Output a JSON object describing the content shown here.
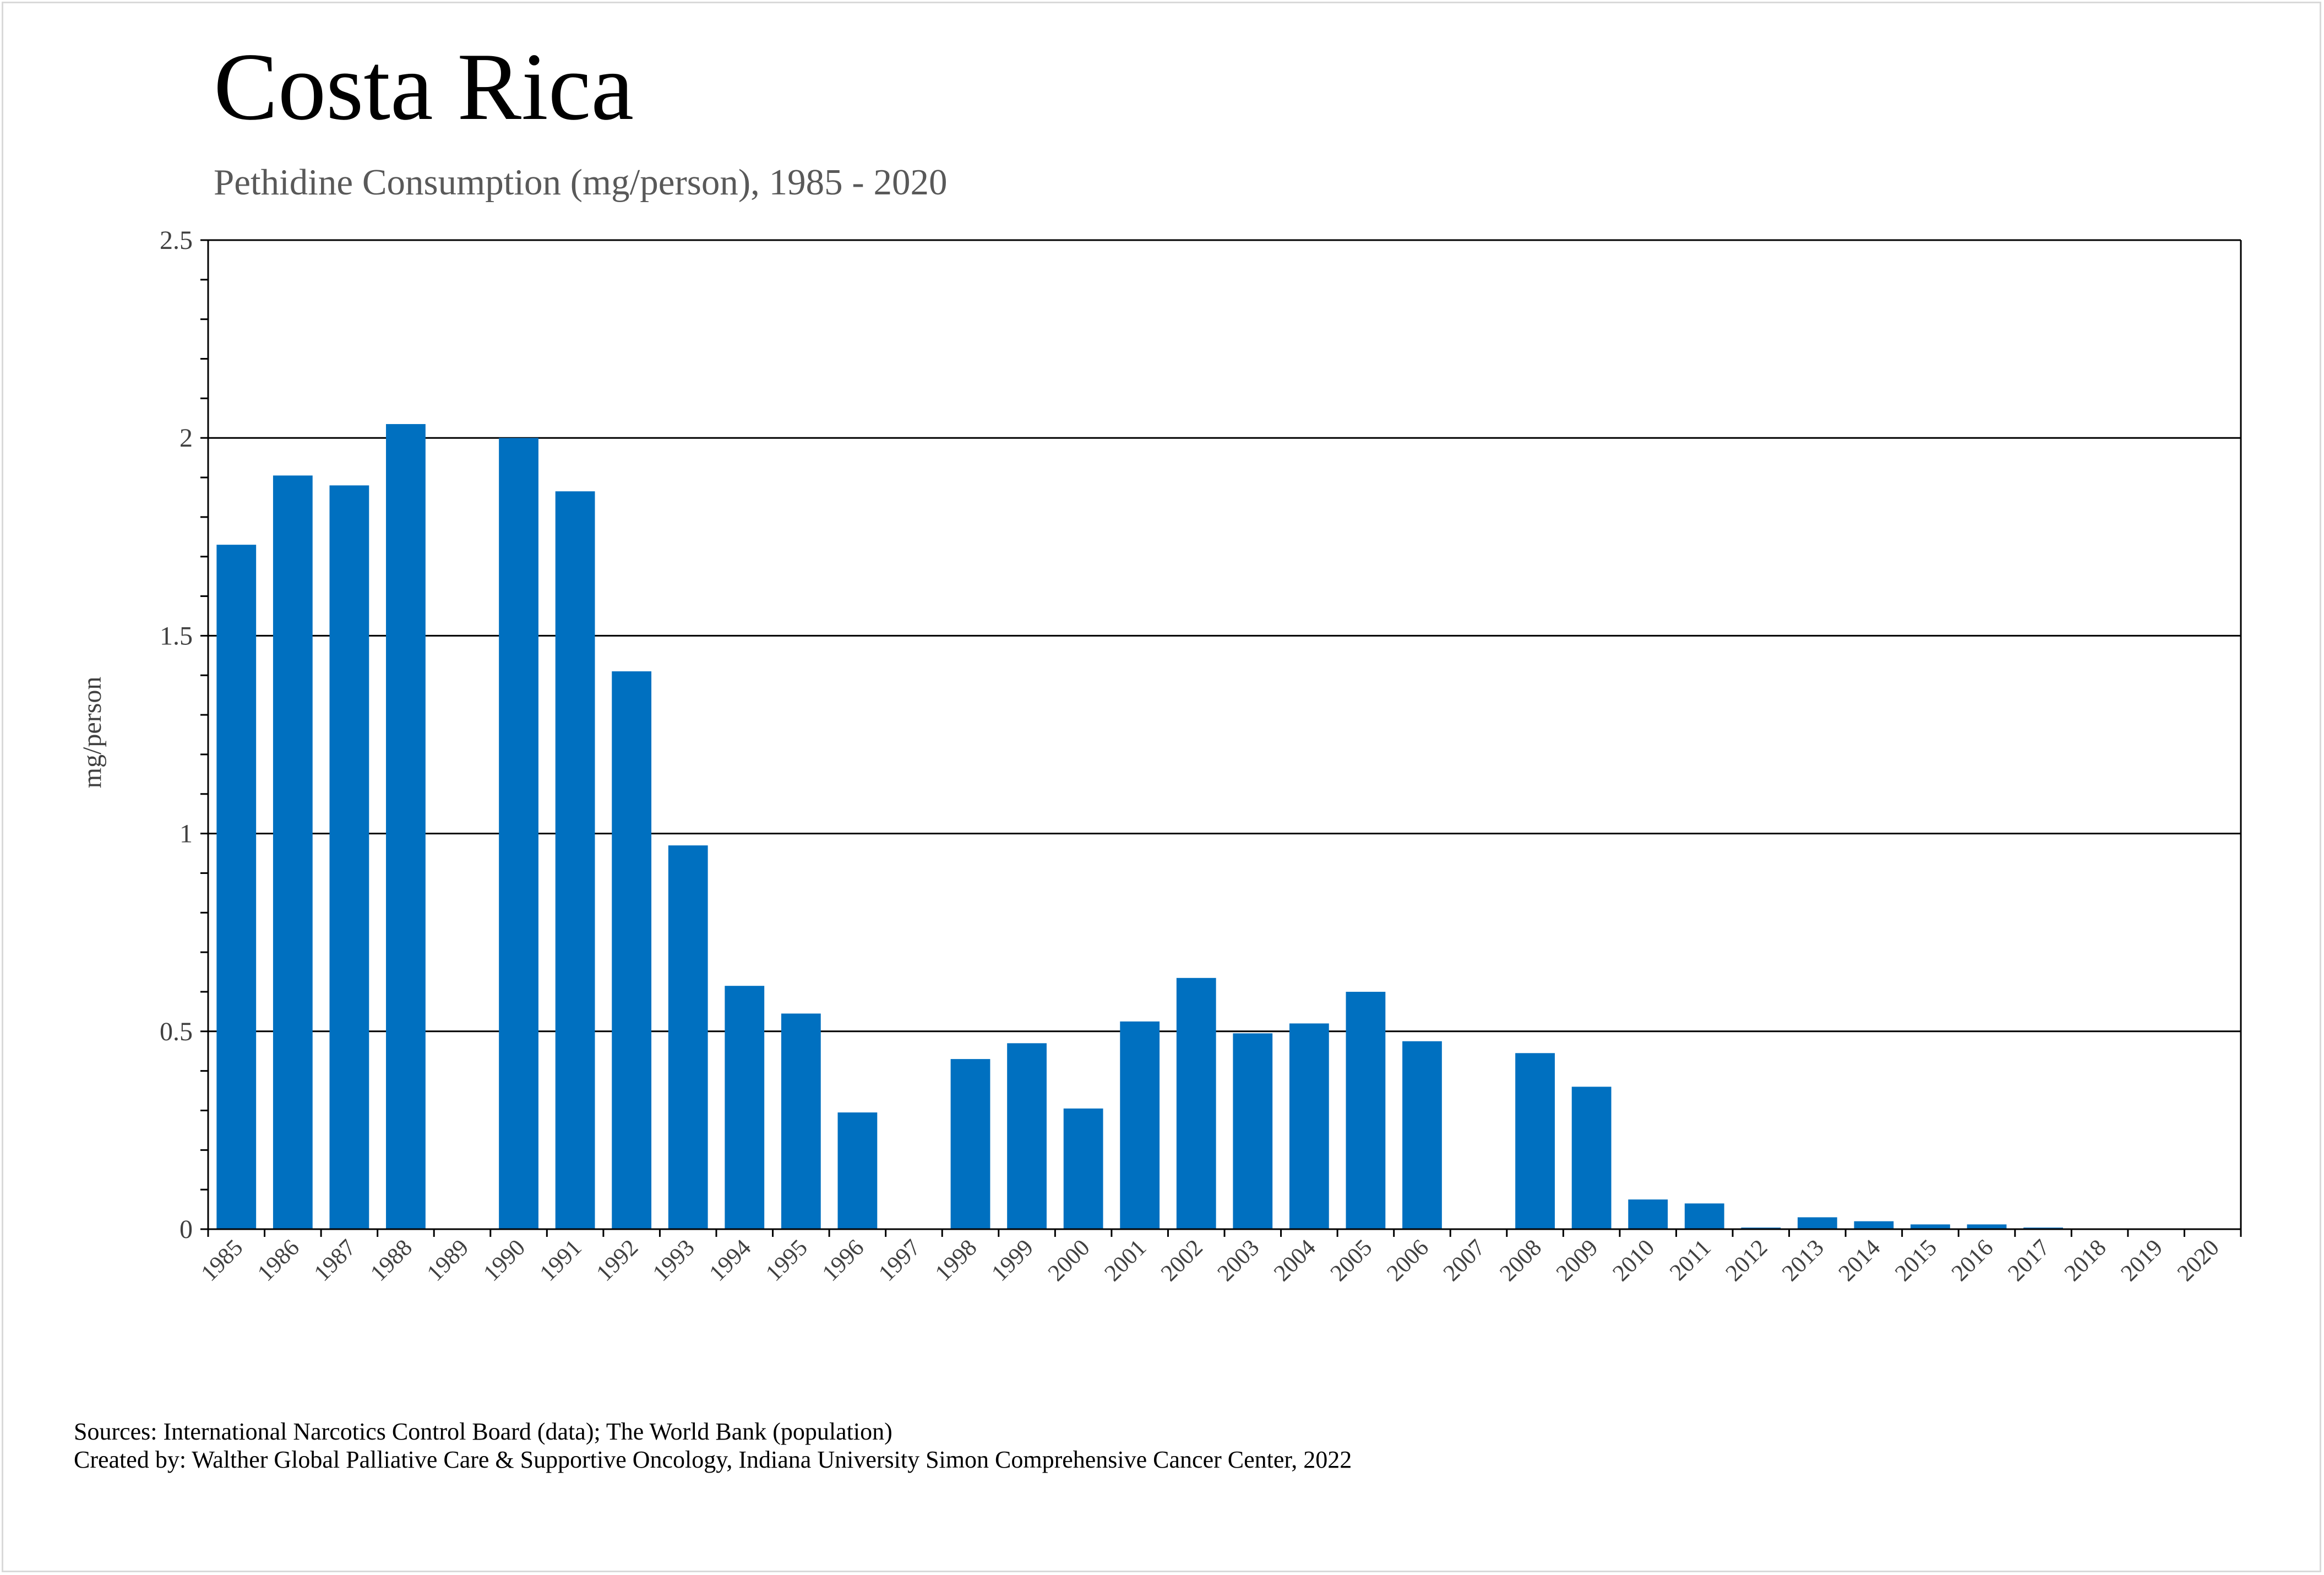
{
  "chart_data": {
    "type": "bar",
    "title": "Costa Rica",
    "subtitle": "Pethidine Consumption (mg/person), 1985 - 2020",
    "xlabel": "",
    "ylabel": "mg/person",
    "ylim": [
      0,
      2.5
    ],
    "yticks": [
      "0",
      "0.5",
      "1",
      "1.5",
      "2",
      "2.5"
    ],
    "grid": true,
    "legend": "none",
    "bar_color": "#0070c0",
    "categories": [
      "1985",
      "1986",
      "1987",
      "1988",
      "1989",
      "1990",
      "1991",
      "1992",
      "1993",
      "1994",
      "1995",
      "1996",
      "1997",
      "1998",
      "1999",
      "2000",
      "2001",
      "2002",
      "2003",
      "2004",
      "2005",
      "2006",
      "2007",
      "2008",
      "2009",
      "2010",
      "2011",
      "2012",
      "2013",
      "2014",
      "2015",
      "2016",
      "2017",
      "2018",
      "2019",
      "2020"
    ],
    "values": [
      1.73,
      1.905,
      1.88,
      2.035,
      0,
      2.0,
      1.865,
      1.41,
      0.97,
      0.615,
      0.545,
      0.295,
      0,
      0.43,
      0.47,
      0.305,
      0.525,
      0.635,
      0.495,
      0.52,
      0.6,
      0.475,
      0,
      0.445,
      0.36,
      0.075,
      0.065,
      0.004,
      0.03,
      0.02,
      0.012,
      0.012,
      0.004,
      0.001,
      0.001,
      0.001
    ]
  },
  "footer": {
    "sources": "Sources: International Narcotics Control Board (data); The World Bank (population)",
    "credits": "Created by: Walther Global Palliative Care & Supportive Oncology, Indiana University Simon Comprehensive Cancer Center, 2022"
  }
}
